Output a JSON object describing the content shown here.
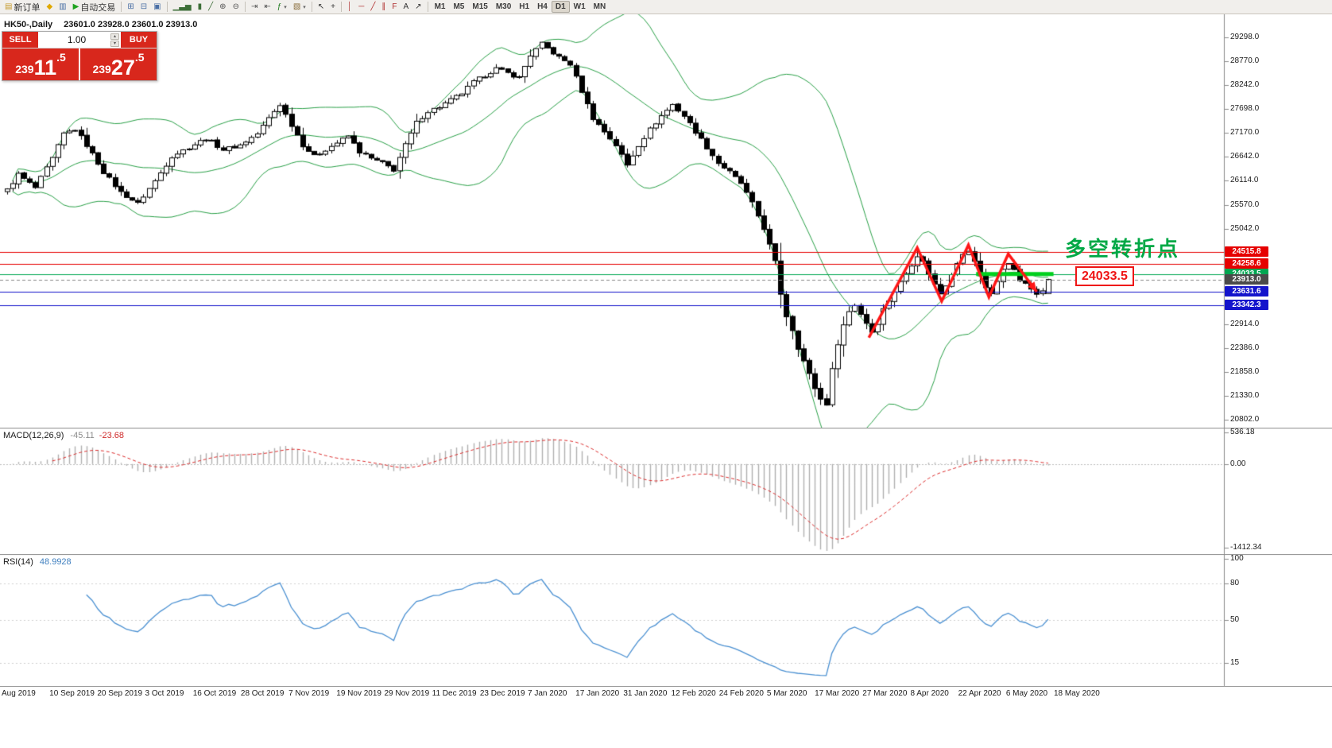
{
  "toolbar": {
    "caret_glyph": "▾",
    "items": [
      {
        "name": "new-order",
        "glyph": "▤",
        "glyph_color": "#c59a2a",
        "label": "新订单"
      },
      {
        "name": "alerts",
        "glyph": "◆",
        "glyph_color": "#e0a800"
      },
      {
        "name": "market-watch",
        "glyph": "▥",
        "glyph_color": "#4a6fa5"
      },
      {
        "name": "autotrading",
        "glyph": "▶",
        "glyph_color": "#1fa31f",
        "label": "自动交易"
      },
      {
        "sep": true
      },
      {
        "name": "tile-windows",
        "glyph": "⊞",
        "glyph_color": "#4a6fa5"
      },
      {
        "name": "cascade-windows",
        "glyph": "⊟",
        "glyph_color": "#4a6fa5"
      },
      {
        "name": "arrange-icons",
        "glyph": "▣",
        "glyph_color": "#4a6fa5"
      },
      {
        "sep": true
      },
      {
        "name": "bar-chart",
        "glyph": "▁▃▅",
        "glyph_color": "#3c6e37"
      },
      {
        "name": "candlestick-chart",
        "glyph": "▮",
        "glyph_color": "#3c6e37"
      },
      {
        "name": "line-chart",
        "glyph": "╱",
        "glyph_color": "#3c6e37"
      },
      {
        "name": "zoom-in",
        "glyph": "⊕",
        "glyph_color": "#555555"
      },
      {
        "name": "zoom-out",
        "glyph": "⊖",
        "glyph_color": "#555555"
      },
      {
        "sep": true
      },
      {
        "name": "auto-scroll",
        "glyph": "⇥",
        "glyph_color": "#555555"
      },
      {
        "name": "chart-shift",
        "glyph": "⇤",
        "glyph_color": "#555555"
      },
      {
        "name": "indicators",
        "glyph": "ƒ",
        "glyph_color": "#1e7a1e",
        "caret": true
      },
      {
        "name": "templates",
        "glyph": "▧",
        "glyph_color": "#8a6d3b",
        "caret": true
      },
      {
        "sep": true
      },
      {
        "name": "cursor",
        "glyph": "↖",
        "glyph_color": "#333333"
      },
      {
        "name": "crosshair",
        "glyph": "+",
        "glyph_color": "#333333"
      },
      {
        "sep": true
      },
      {
        "name": "vertical-line",
        "glyph": "│",
        "glyph_color": "#b03030"
      },
      {
        "name": "horizontal-line",
        "glyph": "─",
        "glyph_color": "#b03030"
      },
      {
        "name": "trendline",
        "glyph": "╱",
        "glyph_color": "#b03030"
      },
      {
        "name": "equidistant-channel",
        "glyph": "∥",
        "glyph_color": "#b03030"
      },
      {
        "name": "fibonacci",
        "glyph": "F",
        "glyph_color": "#b03030"
      },
      {
        "name": "text-label",
        "glyph": "A",
        "glyph_color": "#333333"
      },
      {
        "name": "arrows",
        "glyph": "↗",
        "glyph_color": "#333333"
      },
      {
        "sep": true
      }
    ],
    "timeframes": [
      "M1",
      "M5",
      "M15",
      "M30",
      "H1",
      "H4",
      "D1",
      "W1",
      "MN"
    ],
    "active_timeframe": "D1"
  },
  "chart": {
    "symbol_period": "HK50-,Daily",
    "ohlc_text": "23601.0  23928.0  23601.0  23913.0"
  },
  "trade_panel": {
    "sell_label": "SELL",
    "buy_label": "BUY",
    "volume": "1.00",
    "spin_up_glyph": "▴",
    "spin_down_glyph": "▾",
    "sell_price": {
      "prefix": "239",
      "pips": "11",
      "frac": ".5"
    },
    "buy_price": {
      "prefix": "239",
      "pips": "27",
      "frac": ".5"
    }
  },
  "annotations": {
    "turning_point_text": "多空转折点",
    "turning_point_color": "#00a845",
    "price_label": "24033.5",
    "price_label_color": "#ef1515"
  },
  "chart_data": {
    "type": "candlestick",
    "symbol": "HK50",
    "period": "Daily",
    "ohlc_info": {
      "open": 23601.0,
      "high": 23928.0,
      "low": 23601.0,
      "close": 23913.0
    },
    "bars": 184,
    "visible_price_range": [
      20760,
      29560
    ],
    "price_axis_ticks": [
      "29298.0",
      "28770.0",
      "28242.0",
      "27698.0",
      "27170.0",
      "26642.0",
      "26114.0",
      "25570.0",
      "25042.0",
      "22914.0",
      "22386.0",
      "21858.0",
      "21330.0",
      "20802.0"
    ],
    "x_labels": [
      "Aug 2019",
      "10 Sep 2019",
      "20 Sep 2019",
      "3 Oct 2019",
      "16 Oct 2019",
      "28 Oct 2019",
      "7 Nov 2019",
      "19 Nov 2019",
      "29 Nov 2019",
      "11 Dec 2019",
      "23 Dec 2019",
      "7 Jan 2020",
      "17 Jan 2020",
      "31 Jan 2020",
      "12 Feb 2020",
      "24 Feb 2020",
      "5 Mar 2020",
      "17 Mar 2020",
      "27 Mar 2020",
      "8 Apr 2020",
      "22 Apr 2020",
      "6 May 2020",
      "18 May 2020"
    ],
    "price_anchors": [
      [
        0,
        25900
      ],
      [
        2,
        26250
      ],
      [
        5,
        25950
      ],
      [
        8,
        26600
      ],
      [
        10,
        27150
      ],
      [
        12,
        27250
      ],
      [
        14,
        26900
      ],
      [
        17,
        26300
      ],
      [
        20,
        25850
      ],
      [
        23,
        25600
      ],
      [
        26,
        26100
      ],
      [
        29,
        26650
      ],
      [
        32,
        26850
      ],
      [
        35,
        27050
      ],
      [
        38,
        26800
      ],
      [
        41,
        26900
      ],
      [
        44,
        27150
      ],
      [
        46,
        27500
      ],
      [
        48,
        27800
      ],
      [
        50,
        27350
      ],
      [
        52,
        26900
      ],
      [
        54,
        26650
      ],
      [
        56,
        26800
      ],
      [
        58,
        26950
      ],
      [
        60,
        27100
      ],
      [
        62,
        26750
      ],
      [
        64,
        26600
      ],
      [
        66,
        26500
      ],
      [
        68,
        26350
      ],
      [
        70,
        26900
      ],
      [
        72,
        27400
      ],
      [
        74,
        27650
      ],
      [
        76,
        27750
      ],
      [
        78,
        27900
      ],
      [
        80,
        28050
      ],
      [
        82,
        28300
      ],
      [
        84,
        28450
      ],
      [
        86,
        28600
      ],
      [
        88,
        28500
      ],
      [
        90,
        28400
      ],
      [
        92,
        28900
      ],
      [
        94,
        29150
      ],
      [
        95,
        29050
      ],
      [
        97,
        28850
      ],
      [
        99,
        28700
      ],
      [
        101,
        28100
      ],
      [
        103,
        27500
      ],
      [
        105,
        27200
      ],
      [
        107,
        26900
      ],
      [
        109,
        26450
      ],
      [
        111,
        26900
      ],
      [
        113,
        27250
      ],
      [
        115,
        27550
      ],
      [
        117,
        27800
      ],
      [
        119,
        27550
      ],
      [
        121,
        27200
      ],
      [
        123,
        26850
      ],
      [
        125,
        26500
      ],
      [
        127,
        26300
      ],
      [
        129,
        26050
      ],
      [
        131,
        25600
      ],
      [
        133,
        25050
      ],
      [
        135,
        24300
      ],
      [
        136,
        23600
      ],
      [
        137,
        23100
      ],
      [
        138,
        22800
      ],
      [
        139,
        22400
      ],
      [
        140,
        22100
      ],
      [
        141,
        21800
      ],
      [
        142,
        21500
      ],
      [
        143,
        21250
      ],
      [
        144,
        21150
      ],
      [
        145,
        21900
      ],
      [
        146,
        22500
      ],
      [
        147,
        22900
      ],
      [
        148,
        23200
      ],
      [
        149,
        23350
      ],
      [
        150,
        23150
      ],
      [
        151,
        22950
      ],
      [
        152,
        22750
      ],
      [
        153,
        22950
      ],
      [
        154,
        23250
      ],
      [
        155,
        23450
      ],
      [
        156,
        23650
      ],
      [
        157,
        23850
      ],
      [
        158,
        24050
      ],
      [
        159,
        24250
      ],
      [
        160,
        24450
      ],
      [
        161,
        24300
      ],
      [
        162,
        24050
      ],
      [
        163,
        23800
      ],
      [
        164,
        23600
      ],
      [
        165,
        23800
      ],
      [
        166,
        24050
      ],
      [
        167,
        24300
      ],
      [
        168,
        24450
      ],
      [
        169,
        24550
      ],
      [
        170,
        24300
      ],
      [
        171,
        24000
      ],
      [
        172,
        23750
      ],
      [
        173,
        23600
      ],
      [
        174,
        23850
      ],
      [
        175,
        24150
      ],
      [
        176,
        24300
      ],
      [
        177,
        24100
      ],
      [
        178,
        23900
      ],
      [
        179,
        23800
      ],
      [
        180,
        23700
      ],
      [
        181,
        23620
      ],
      [
        182,
        23700
      ],
      [
        183,
        23913
      ]
    ],
    "bollinger": {
      "period": 20,
      "deviation": 2,
      "color": "#2aa148"
    },
    "levels": [
      {
        "label": "24515.8",
        "price": 24515.8,
        "line": "#e60000",
        "tag": "#e60000",
        "style": "solid"
      },
      {
        "label": "24258.6",
        "price": 24258.6,
        "line": "#e60000",
        "tag": "#e60000",
        "style": "solid"
      },
      {
        "label": "24033.5",
        "price": 24033.5,
        "line": "#00a651",
        "tag": "#00a651",
        "style": "solid"
      },
      {
        "label": "23913.0",
        "price": 23913.0,
        "line": "#8a8a8a",
        "tag": "#4a4a4a",
        "style": "dash",
        "current": true
      },
      {
        "label": "23631.6",
        "price": 23631.6,
        "line": "#1414cc",
        "tag": "#1414cc",
        "style": "solid"
      },
      {
        "label": "23342.3",
        "price": 23342.3,
        "line": "#1414cc",
        "tag": "#1414cc",
        "style": "solid"
      }
    ],
    "macd": {
      "label": "MACD(12,26,9)",
      "value_main": "-45.11",
      "value_signal": "-23.68",
      "scale": [
        "536.18",
        "0.00",
        "-1412.34"
      ],
      "ylim": [
        560,
        -1460
      ],
      "hist_color": "#b0b0b0",
      "signal_color": "#dd2c2c"
    },
    "rsi": {
      "label": "RSI(14)",
      "value": "48.9928",
      "scale": [
        "100",
        "80",
        "50",
        "15"
      ],
      "line_color": "#4a90d2"
    },
    "annotations": {
      "zigzag": {
        "color": "#ff1616",
        "width": 3.5,
        "points": [
          [
            151.5,
            22620
          ],
          [
            160,
            24620
          ],
          [
            164.3,
            23430
          ],
          [
            169,
            24680
          ],
          [
            172.6,
            23520
          ],
          [
            176,
            24480
          ],
          [
            181,
            23640
          ]
        ]
      },
      "support_bar": {
        "price": 24033.5,
        "from_bar": 170.7,
        "to_bar": 184.3,
        "color": "#00d01e",
        "thickness": 5
      }
    }
  }
}
